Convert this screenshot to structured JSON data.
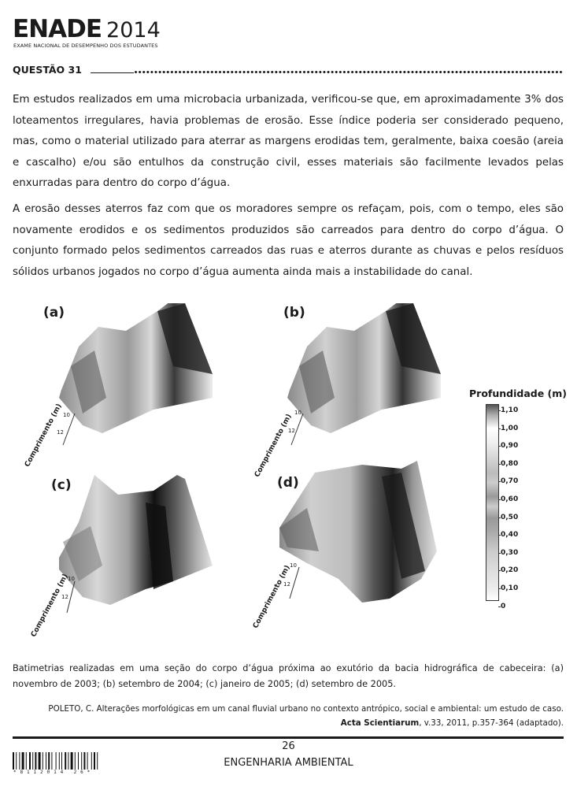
{
  "header": {
    "logo_word": "ENADE",
    "logo_year": "2014",
    "logo_subtitle": "EXAME NACIONAL DE DESEMPENHO DOS ESTUDANTES"
  },
  "question": {
    "title": "QUESTÃO 31",
    "paragraphs": [
      "Em estudos realizados em uma microbacia urbanizada, verificou-se que, em aproximadamente 3% dos loteamentos irregulares, havia problemas de erosão. Esse índice poderia ser considerado pequeno, mas, como o material utilizado para aterrar as margens erodidas tem, geralmente, baixa coesão (areia e cascalho) e/ou são entulhos da construção civil, esses materiais são facilmente levados pelas enxurradas para dentro do corpo d’água.",
      "A erosão desses aterros faz com que os moradores sempre os refaçam, pois, com o tempo, eles são novamente erodidos e os sedimentos produzidos são carreados para dentro do corpo d’água. O conjunto formado pelos sedimentos carreados das ruas e aterros durante as chuvas e pelos resíduos sólidos urbanos jogados no corpo d’água aumenta ainda mais a instabilidade do canal."
    ]
  },
  "figure": {
    "panels": [
      {
        "label": "(a)",
        "axis": "Comprimento (m)",
        "tick1": "10",
        "tick2": "12"
      },
      {
        "label": "(b)",
        "axis": "Comprimento (m)",
        "tick1": "10",
        "tick2": "12"
      },
      {
        "label": "(c)",
        "axis": "Comprimento (m)",
        "tick1": "10",
        "tick2": "12"
      },
      {
        "label": "(d)",
        "axis": "Comprimento (m)",
        "tick1": "10",
        "tick2": "12"
      }
    ],
    "legend_title": "Profundidade (m)",
    "legend_ticks": [
      "1,10",
      "1,00",
      "0,90",
      "0,80",
      "0,70",
      "0,60",
      "0,50",
      "0,40",
      "0,30",
      "0,20",
      "0,10",
      "0"
    ]
  },
  "caption": "Batimetrias realizadas em uma seção do corpo d’água próxima ao exutório da bacia hidrográfica de cabeceira: (a) novembro de 2003; (b) setembro de 2004; (c) janeiro de 2005; (d) setembro de 2005.",
  "source": {
    "line1": "POLETO, C. Alterações morfológicas em um canal fluvial urbano no contexto antrópico, social e ambiental: um estudo de caso.",
    "journal": "Acta Scientiarum",
    "line2_rest": ", v.33, 2011, p.357-364 (adaptado)."
  },
  "footer": {
    "page_number": "26",
    "course": "ENGENHARIA AMBIENTAL",
    "barcode_text": "*8112014 26*"
  }
}
